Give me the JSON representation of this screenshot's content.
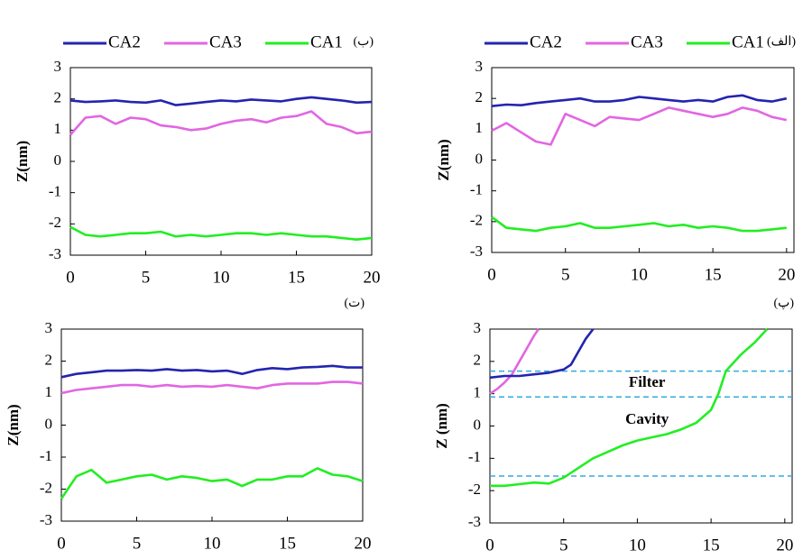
{
  "chart_data": [
    {
      "type": "line",
      "panel_label": "(ب)",
      "ylabel": "Z(nm)",
      "legend": "top",
      "xlim": [
        0,
        20
      ],
      "ylim": [
        -3,
        3
      ],
      "xticks": [
        0,
        5,
        10,
        15,
        20
      ],
      "yticks": [
        -3,
        -2,
        -1,
        0,
        1,
        2,
        3
      ],
      "x": [
        0,
        1,
        2,
        3,
        4,
        5,
        6,
        7,
        8,
        9,
        10,
        11,
        12,
        13,
        14,
        15,
        16,
        17,
        18,
        19,
        20
      ],
      "series": [
        {
          "name": "CA2",
          "color": "#2424b0",
          "values": [
            1.95,
            1.9,
            1.92,
            1.95,
            1.9,
            1.88,
            1.95,
            1.8,
            1.85,
            1.9,
            1.95,
            1.92,
            1.98,
            1.95,
            1.92,
            2.0,
            2.05,
            2.0,
            1.95,
            1.88,
            1.9
          ]
        },
        {
          "name": "CA3",
          "color": "#e266e2",
          "values": [
            0.85,
            1.4,
            1.45,
            1.2,
            1.4,
            1.35,
            1.15,
            1.1,
            1.0,
            1.05,
            1.2,
            1.3,
            1.35,
            1.25,
            1.4,
            1.45,
            1.6,
            1.2,
            1.1,
            0.9,
            0.95
          ]
        },
        {
          "name": "CA1",
          "color": "#22ee22",
          "values": [
            -2.1,
            -2.35,
            -2.4,
            -2.35,
            -2.3,
            -2.3,
            -2.25,
            -2.4,
            -2.35,
            -2.4,
            -2.35,
            -2.3,
            -2.3,
            -2.35,
            -2.3,
            -2.35,
            -2.4,
            -2.4,
            -2.45,
            -2.5,
            -2.45
          ]
        }
      ]
    },
    {
      "type": "line",
      "panel_label": "(الف)",
      "ylabel": "Z(nm)",
      "legend": "top",
      "xlim": [
        0,
        20.5
      ],
      "ylim": [
        -3,
        3
      ],
      "xticks": [
        0,
        5,
        10,
        15,
        20
      ],
      "yticks": [
        -3,
        -2,
        -1,
        0,
        1,
        2,
        3
      ],
      "x": [
        0,
        1,
        2,
        3,
        4,
        5,
        6,
        7,
        8,
        9,
        10,
        11,
        12,
        13,
        14,
        15,
        16,
        17,
        18,
        19,
        20
      ],
      "series": [
        {
          "name": "CA2",
          "color": "#2424b0",
          "values": [
            1.75,
            1.8,
            1.78,
            1.85,
            1.9,
            1.95,
            2.0,
            1.9,
            1.9,
            1.95,
            2.05,
            2.0,
            1.95,
            1.9,
            1.95,
            1.9,
            2.05,
            2.1,
            1.95,
            1.9,
            2.0
          ]
        },
        {
          "name": "CA3",
          "color": "#e266e2",
          "values": [
            0.95,
            1.2,
            0.9,
            0.6,
            0.5,
            1.5,
            1.3,
            1.1,
            1.4,
            1.35,
            1.3,
            1.5,
            1.7,
            1.6,
            1.5,
            1.4,
            1.5,
            1.7,
            1.6,
            1.4,
            1.3
          ]
        },
        {
          "name": "CA1",
          "color": "#22ee22",
          "values": [
            -1.85,
            -2.2,
            -2.25,
            -2.3,
            -2.2,
            -2.15,
            -2.05,
            -2.2,
            -2.2,
            -2.15,
            -2.1,
            -2.05,
            -2.15,
            -2.1,
            -2.2,
            -2.15,
            -2.2,
            -2.3,
            -2.3,
            -2.25,
            -2.2
          ]
        }
      ]
    },
    {
      "type": "line",
      "panel_label": "(ت)",
      "ylabel": "Z(nm)",
      "xlim": [
        0,
        20
      ],
      "ylim": [
        -3,
        3
      ],
      "xticks": [
        0,
        5,
        10,
        15,
        20
      ],
      "yticks": [
        -3,
        -2,
        -1,
        0,
        1,
        2,
        3
      ],
      "x": [
        0,
        1,
        2,
        3,
        4,
        5,
        6,
        7,
        8,
        9,
        10,
        11,
        12,
        13,
        14,
        15,
        16,
        17,
        18,
        19,
        20
      ],
      "series": [
        {
          "color": "#2424b0",
          "values": [
            1.5,
            1.6,
            1.65,
            1.7,
            1.7,
            1.72,
            1.7,
            1.75,
            1.7,
            1.72,
            1.68,
            1.7,
            1.6,
            1.72,
            1.78,
            1.75,
            1.8,
            1.82,
            1.85,
            1.8,
            1.8
          ]
        },
        {
          "color": "#e266e2",
          "values": [
            1.0,
            1.1,
            1.15,
            1.2,
            1.25,
            1.25,
            1.2,
            1.25,
            1.2,
            1.22,
            1.2,
            1.25,
            1.2,
            1.15,
            1.25,
            1.3,
            1.3,
            1.3,
            1.35,
            1.35,
            1.3
          ]
        },
        {
          "color": "#22ee22",
          "values": [
            -2.3,
            -1.6,
            -1.4,
            -1.8,
            -1.7,
            -1.6,
            -1.55,
            -1.7,
            -1.6,
            -1.65,
            -1.75,
            -1.7,
            -1.9,
            -1.7,
            -1.7,
            -1.6,
            -1.6,
            -1.35,
            -1.55,
            -1.6,
            -1.75
          ]
        }
      ]
    },
    {
      "type": "line",
      "panel_label": "(پ)",
      "ylabel": "Z (nm)",
      "xlim": [
        0,
        20.5
      ],
      "ylim": [
        -3,
        3
      ],
      "xticks": [
        0,
        5,
        10,
        15,
        20
      ],
      "yticks": [
        -3,
        -2,
        -1,
        0,
        1,
        2,
        3
      ],
      "hlines": [
        1.7,
        0.9,
        -1.55
      ],
      "hline_color": "#33aadd",
      "annotations": [
        "Filter",
        "Cavity"
      ],
      "series": [
        {
          "color": "#e266e2",
          "x": [
            0,
            0.5,
            1,
            1.5,
            2,
            2.5,
            3,
            3.3
          ],
          "values": [
            1.0,
            1.15,
            1.35,
            1.6,
            2.0,
            2.4,
            2.8,
            3.0
          ]
        },
        {
          "color": "#2424b0",
          "x": [
            0,
            1,
            2,
            3,
            4,
            5,
            5.5,
            6,
            6.5,
            7
          ],
          "values": [
            1.5,
            1.55,
            1.55,
            1.6,
            1.65,
            1.75,
            1.9,
            2.3,
            2.7,
            3.0
          ]
        },
        {
          "color": "#22ee22",
          "x": [
            0,
            1,
            2,
            3,
            4,
            5,
            6,
            7,
            8,
            9,
            10,
            11,
            12,
            13,
            14,
            15,
            15.5,
            16,
            17,
            18,
            18.8
          ],
          "values": [
            -1.85,
            -1.85,
            -1.8,
            -1.75,
            -1.78,
            -1.6,
            -1.3,
            -1.0,
            -0.8,
            -0.6,
            -0.45,
            -0.35,
            -0.25,
            -0.1,
            0.1,
            0.5,
            1.0,
            1.7,
            2.2,
            2.6,
            3.0
          ]
        }
      ]
    }
  ]
}
